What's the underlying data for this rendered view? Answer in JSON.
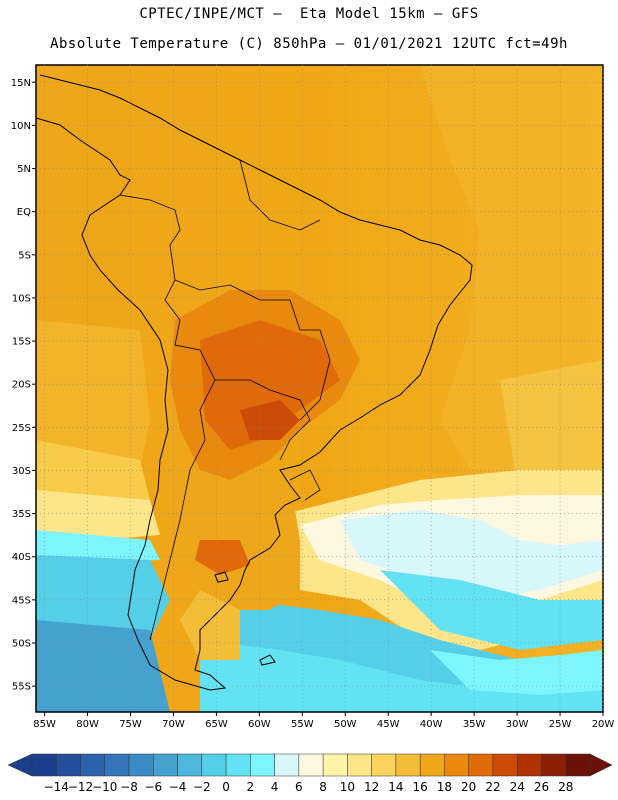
{
  "header": {
    "line1": "CPTEC/INPE/MCT –  Eta Model 15km – GFS",
    "line2": "Absolute Temperature (C) 850hPa – 01/01/2021 12UTC fct=49h"
  },
  "map": {
    "lat_labels": [
      "15N",
      "10N",
      "5N",
      "EQ",
      "5S",
      "10S",
      "15S",
      "20S",
      "25S",
      "30S",
      "35S",
      "40S",
      "45S",
      "50S",
      "55S"
    ],
    "lon_labels": [
      "85W",
      "80W",
      "75W",
      "70W",
      "65W",
      "60W",
      "55W",
      "50W",
      "45W",
      "40W",
      "35W",
      "30W",
      "25W",
      "20W"
    ],
    "lat_values": [
      15,
      10,
      5,
      0,
      -5,
      -10,
      -15,
      -20,
      -25,
      -30,
      -35,
      -40,
      -45,
      -50,
      -55
    ],
    "lon_values": [
      -85,
      -80,
      -75,
      -70,
      -65,
      -60,
      -55,
      -50,
      -45,
      -40,
      -35,
      -30,
      -25,
      -20
    ],
    "extent": {
      "lon_min": -86,
      "lon_max": -20,
      "lat_min": -58,
      "lat_max": 17
    },
    "gridlines": true
  },
  "colorbar": {
    "labels": [
      "-14",
      "-12",
      "-10",
      "-8",
      "-6",
      "-4",
      "-2",
      "0",
      "2",
      "4",
      "6",
      "8",
      "10",
      "12",
      "14",
      "16",
      "18",
      "20",
      "22",
      "24",
      "26",
      "28"
    ],
    "colors": [
      "#1b3f8a",
      "#234f9a",
      "#2b62aa",
      "#3476b8",
      "#3c8bc4",
      "#45a2cf",
      "#4db8dc",
      "#55cfe8",
      "#62e2f2",
      "#7cf5ff",
      "#d7f7fb",
      "#fff8e1",
      "#fff4a8",
      "#fde68a",
      "#f9d35c",
      "#f4bd38",
      "#eea61a",
      "#e98a0e",
      "#e06a0a",
      "#cc4b07",
      "#b03205",
      "#8e1f07",
      "#6a1208"
    ]
  }
}
